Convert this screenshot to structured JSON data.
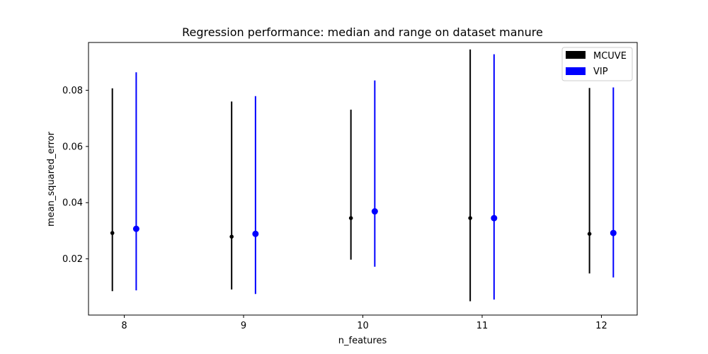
{
  "chart_data": {
    "type": "errorbar",
    "title": "Regression performance: median and range on dataset manure",
    "xlabel": "n_features",
    "ylabel": "mean_squared_error",
    "xlim": [
      7.7,
      12.3
    ],
    "ylim": [
      0.0,
      0.097
    ],
    "x_ticks": [
      8,
      9,
      10,
      11,
      12
    ],
    "x_tick_labels": [
      "8",
      "9",
      "10",
      "11",
      "12"
    ],
    "y_ticks": [
      0.02,
      0.04,
      0.06,
      0.08
    ],
    "y_tick_labels": [
      "0.02",
      "0.04",
      "0.06",
      "0.08"
    ],
    "grid": false,
    "legend_position": "top-right",
    "series": [
      {
        "name": "MCUVE",
        "color": "#000000",
        "x_offset": -0.1,
        "marker_size": "small",
        "points": [
          {
            "x": 8,
            "median": 0.0292,
            "min": 0.0085,
            "max": 0.0807
          },
          {
            "x": 9,
            "median": 0.0279,
            "min": 0.0091,
            "max": 0.076
          },
          {
            "x": 10,
            "median": 0.0345,
            "min": 0.0197,
            "max": 0.0731
          },
          {
            "x": 11,
            "median": 0.0345,
            "min": 0.0049,
            "max": 0.0945
          },
          {
            "x": 12,
            "median": 0.0289,
            "min": 0.0148,
            "max": 0.0808
          }
        ]
      },
      {
        "name": "VIP",
        "color": "#0000ff",
        "x_offset": 0.1,
        "marker_size": "large",
        "points": [
          {
            "x": 8,
            "median": 0.0307,
            "min": 0.0088,
            "max": 0.0864
          },
          {
            "x": 9,
            "median": 0.0289,
            "min": 0.0075,
            "max": 0.0779
          },
          {
            "x": 10,
            "median": 0.0369,
            "min": 0.0172,
            "max": 0.0835
          },
          {
            "x": 11,
            "median": 0.0345,
            "min": 0.0055,
            "max": 0.0928
          },
          {
            "x": 12,
            "median": 0.0292,
            "min": 0.0134,
            "max": 0.081
          }
        ]
      }
    ]
  }
}
